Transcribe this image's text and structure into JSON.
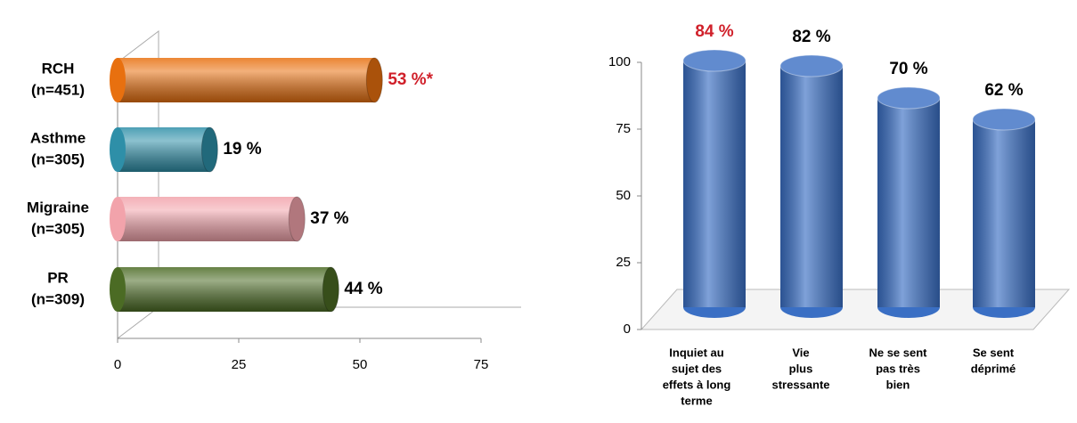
{
  "chart_data": [
    {
      "type": "hbar",
      "categories": [
        [
          "RCH",
          "(n=451)"
        ],
        [
          "Asthme",
          "(n=305)"
        ],
        [
          "Migraine",
          "(n=305)"
        ],
        [
          "PR",
          "(n=309)"
        ]
      ],
      "values": [
        53,
        19,
        37,
        44
      ],
      "value_labels": [
        "53 %*",
        "19 %",
        "37 %",
        "44 %"
      ],
      "value_label_colors": [
        "#d0202a",
        "#000000",
        "#000000",
        "#000000"
      ],
      "colors": [
        "#e8700f",
        "#2e8fa8",
        "#f2a3ab",
        "#4b6b24"
      ],
      "xlim": [
        0,
        75
      ],
      "xticks": [
        0,
        25,
        50,
        75
      ]
    },
    {
      "type": "vbar",
      "categories": [
        [
          "Inquiet au",
          "sujet des",
          "effets à long",
          "terme"
        ],
        [
          "Vie",
          "plus",
          "stressante"
        ],
        [
          "Ne se sent",
          "pas très",
          "bien"
        ],
        [
          "Se sent",
          "déprimé"
        ]
      ],
      "values": [
        84,
        82,
        70,
        62
      ],
      "value_labels": [
        "84 %",
        "82 %",
        "70 %",
        "62 %"
      ],
      "value_label_colors": [
        "#d0202a",
        "#000000",
        "#000000",
        "#000000"
      ],
      "color": "#3a6fc4",
      "ylim": [
        0,
        100
      ],
      "yticks": [
        0,
        25,
        50,
        75,
        100
      ]
    }
  ]
}
